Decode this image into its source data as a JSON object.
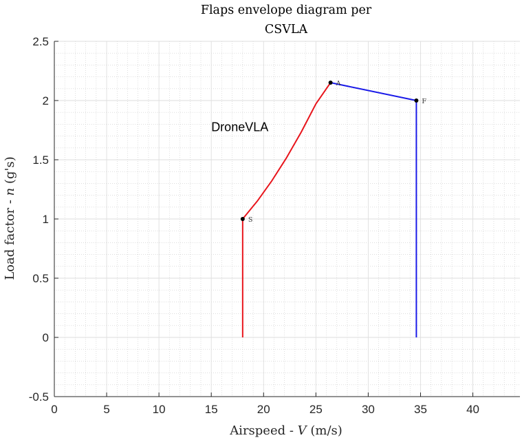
{
  "chart_data": {
    "type": "line",
    "title": [
      "Flaps envelope diagram per",
      "CSVLA"
    ],
    "xlabel": {
      "main": "Airspeed - ",
      "var": "V",
      "unit": " (m/s)"
    },
    "ylabel": {
      "main": "Load factor - ",
      "var": "n",
      "unit": " (g's)"
    },
    "xlim": [
      0,
      44.5
    ],
    "ylim": [
      -0.5,
      2.5
    ],
    "xticks": [
      0,
      5,
      10,
      15,
      20,
      25,
      30,
      35,
      40
    ],
    "xtick_labels": [
      "0",
      "5",
      "10",
      "15",
      "20",
      "25",
      "30",
      "35",
      "40"
    ],
    "yticks": [
      -0.5,
      0,
      0.5,
      1,
      1.5,
      2,
      2.5
    ],
    "ytick_labels": [
      "-0.5",
      "0",
      "0.5",
      "1",
      "1.5",
      "2",
      "2.5"
    ],
    "grid": true,
    "minor_grid": true,
    "series": [
      {
        "color": "#e8141b",
        "x": [
          18.0,
          18.0
        ],
        "y": [
          0,
          1.0
        ]
      },
      {
        "color": "#e8141b",
        "curve": "quadratic",
        "x": [
          18.0,
          19.4,
          20.8,
          22.2,
          23.6,
          25.0,
          26.4
        ],
        "y": [
          1.0,
          1.151,
          1.324,
          1.518,
          1.734,
          1.972,
          2.151
        ]
      },
      {
        "color": "#1a1ae8",
        "x": [
          26.4,
          34.6
        ],
        "y": [
          2.151,
          2.0
        ]
      },
      {
        "color": "#1a1ae8",
        "x": [
          34.6,
          34.6
        ],
        "y": [
          2.0,
          0
        ]
      }
    ],
    "points": [
      {
        "label": "S",
        "x": 18.0,
        "y": 1.0
      },
      {
        "label": "A",
        "x": 26.4,
        "y": 2.151
      },
      {
        "label": "F",
        "x": 34.6,
        "y": 2.0
      }
    ],
    "annotation": {
      "text": "DroneVLA",
      "x": 15.0,
      "y": 1.775
    },
    "colors": {
      "axis": "#262626",
      "major_grid": "#dedede",
      "minor_grid": "#c8c8c8",
      "points": "#000000"
    }
  }
}
